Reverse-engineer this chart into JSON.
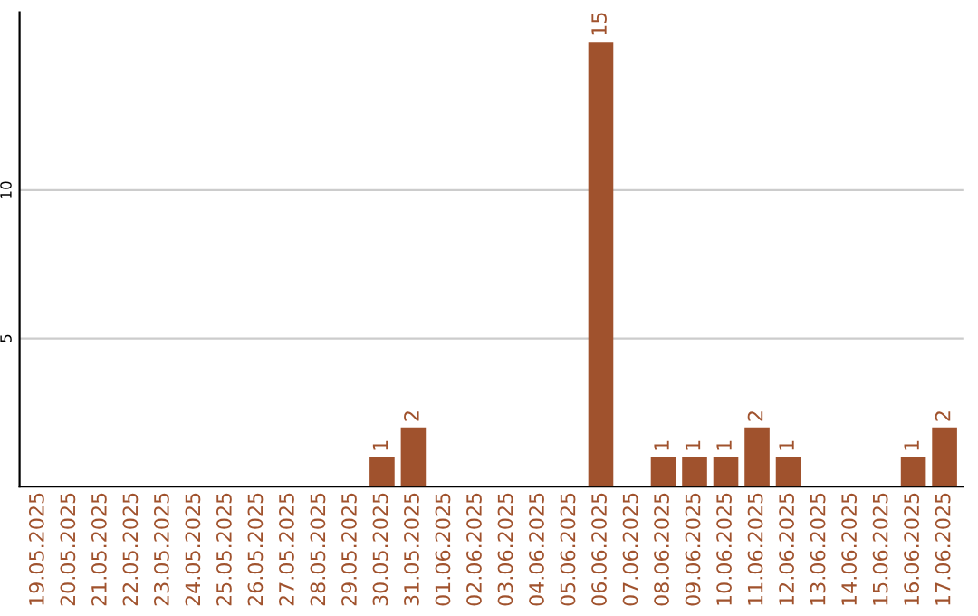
{
  "chart_data": {
    "type": "bar",
    "categories": [
      "19.05.2025",
      "20.05.2025",
      "21.05.2025",
      "22.05.2025",
      "23.05.2025",
      "24.05.2025",
      "25.05.2025",
      "26.05.2025",
      "27.05.2025",
      "28.05.2025",
      "29.05.2025",
      "30.05.2025",
      "31.05.2025",
      "01.06.2025",
      "02.06.2025",
      "03.06.2025",
      "04.06.2025",
      "05.06.2025",
      "06.06.2025",
      "07.06.2025",
      "08.06.2025",
      "09.06.2025",
      "10.06.2025",
      "11.06.2025",
      "12.06.2025",
      "13.06.2025",
      "14.06.2025",
      "15.06.2025",
      "16.06.2025",
      "17.06.2025"
    ],
    "values": [
      0,
      0,
      0,
      0,
      0,
      0,
      0,
      0,
      0,
      0,
      0,
      1,
      2,
      0,
      0,
      0,
      0,
      0,
      15,
      0,
      1,
      1,
      1,
      2,
      1,
      0,
      0,
      0,
      1,
      2
    ],
    "value_labels": [
      null,
      null,
      null,
      null,
      null,
      null,
      null,
      null,
      null,
      null,
      null,
      "1",
      "2",
      null,
      null,
      null,
      null,
      null,
      "15",
      null,
      "1",
      "1",
      "1",
      "2",
      "1",
      null,
      null,
      null,
      "1",
      "2"
    ],
    "color": "#a0522d",
    "ylim": [
      0,
      16
    ],
    "yticks": [
      5,
      10
    ],
    "grid": "y"
  }
}
